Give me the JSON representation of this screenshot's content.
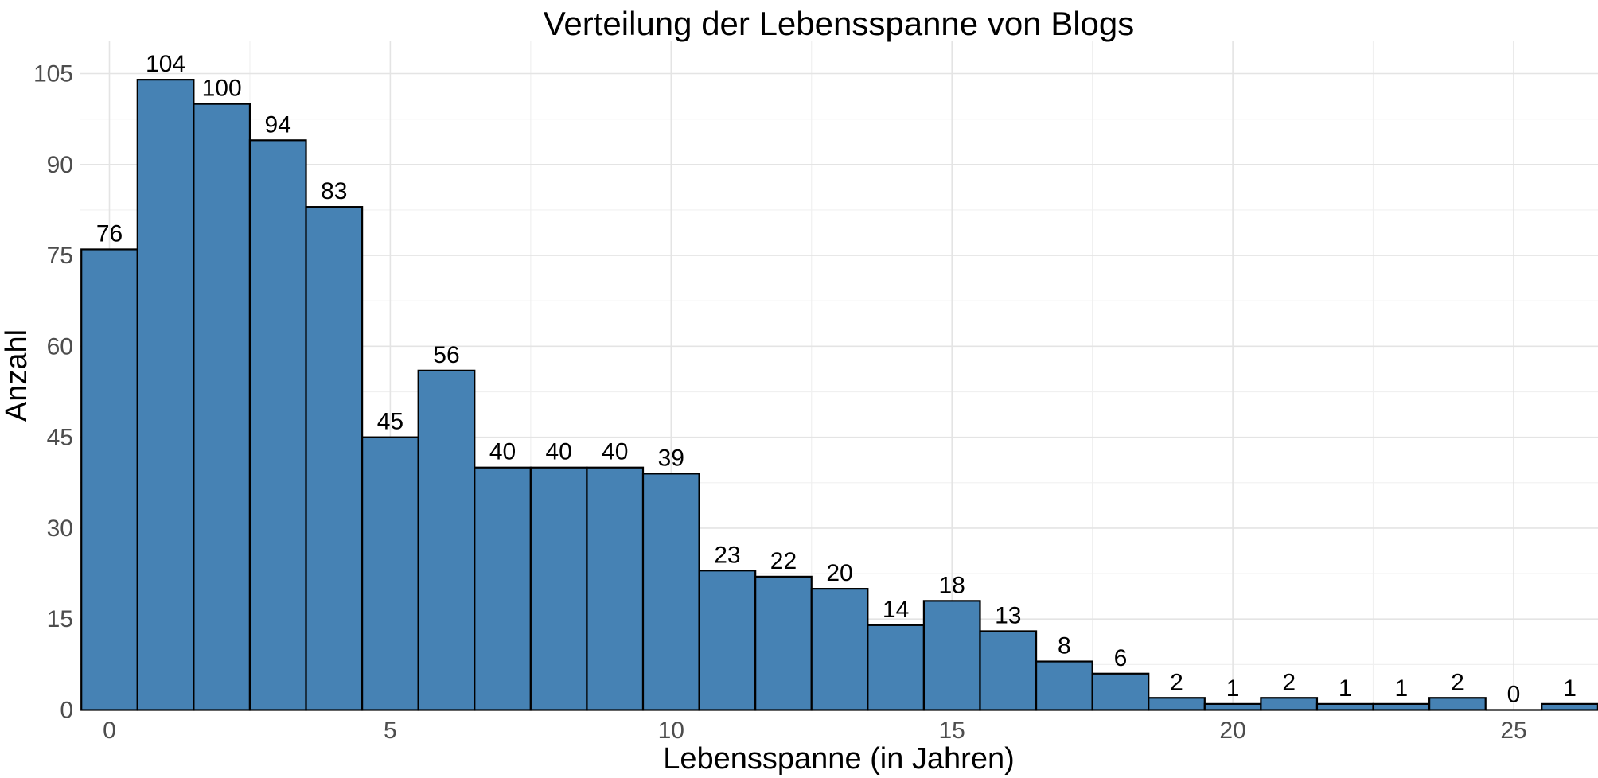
{
  "chart_data": {
    "type": "bar",
    "subtype": "histogram",
    "title": "Verteilung der Lebensspanne von Blogs",
    "xlabel": "Lebensspanne (in Jahren)",
    "ylabel": "Anzahl",
    "bin_centers": [
      0,
      1,
      2,
      3,
      4,
      5,
      6,
      7,
      8,
      9,
      10,
      11,
      12,
      13,
      14,
      15,
      16,
      17,
      18,
      19,
      20,
      21,
      22,
      23,
      24,
      25,
      26
    ],
    "values": [
      76,
      104,
      100,
      94,
      83,
      45,
      56,
      40,
      40,
      40,
      39,
      23,
      22,
      20,
      14,
      18,
      13,
      8,
      6,
      2,
      1,
      2,
      1,
      1,
      2,
      0,
      1
    ],
    "bin_width": 1,
    "x_ticks": [
      0,
      5,
      10,
      15,
      20,
      25
    ],
    "y_ticks": [
      0,
      15,
      30,
      45,
      60,
      75,
      90,
      105
    ],
    "xlim": [
      -0.53,
      26.5
    ],
    "ylim": [
      0,
      110
    ],
    "grid": "major and minor, light gray on white",
    "legend": "none",
    "bar_value_labels_shown": true,
    "colors": {
      "bar_fill": "#4682B4",
      "bar_stroke": "#000000",
      "grid_major": "#E4E4E4",
      "grid_minor": "#F0F0F0",
      "tick_label": "#4D4D4D",
      "text": "#000000",
      "background": "#FFFFFF"
    }
  }
}
